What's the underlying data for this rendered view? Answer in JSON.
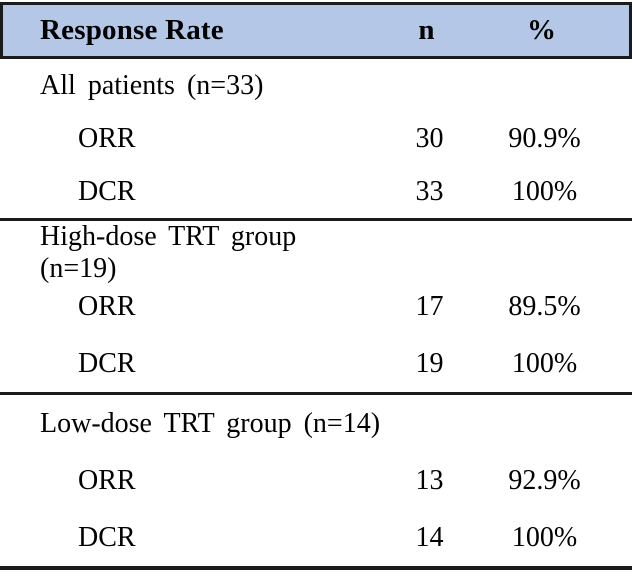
{
  "title": "Response Rate table",
  "colors": {
    "header_bg": "#b4c7e7",
    "border": "#1b1b1b",
    "text": "#000000",
    "background": "#ffffff"
  },
  "header": {
    "response_rate": "Response Rate",
    "n": "n",
    "percent": "%"
  },
  "sections": [
    {
      "title": "All patients (n=33)",
      "rows": [
        {
          "label": "ORR",
          "n": "30",
          "pct": "90.9%"
        },
        {
          "label": "DCR",
          "n": "33",
          "pct": "100%"
        }
      ]
    },
    {
      "title": "High-dose TRT group (n=19)",
      "rows": [
        {
          "label": "ORR",
          "n": "17",
          "pct": "89.5%"
        },
        {
          "label": "DCR",
          "n": "19",
          "pct": "100%"
        }
      ]
    },
    {
      "title": "Low-dose TRT group (n=14)",
      "rows": [
        {
          "label": "ORR",
          "n": "13",
          "pct": "92.9%"
        },
        {
          "label": "DCR",
          "n": "14",
          "pct": "100%"
        }
      ]
    }
  ]
}
